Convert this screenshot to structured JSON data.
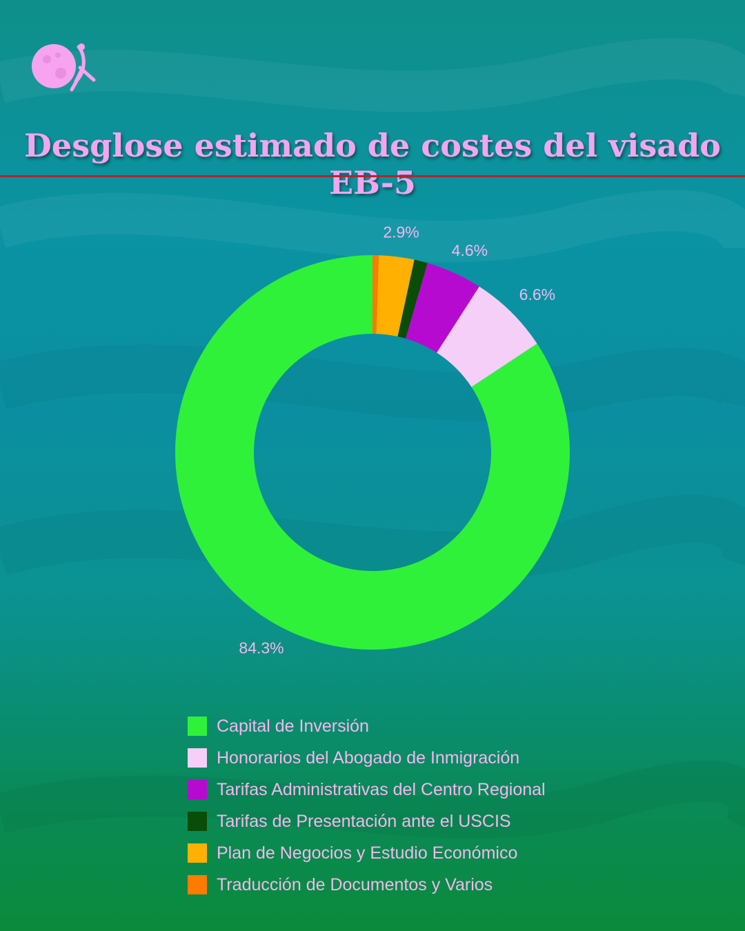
{
  "header": {
    "title": "Desglose estimado de costes del visado EB-5",
    "logo_icon": "moon-figure-logo-icon"
  },
  "chart_data": {
    "type": "pie",
    "title": "Desglose estimado de costes del visado EB-5",
    "donut": true,
    "start_angle_deg": 0,
    "direction": "counterclockwise",
    "legend_position": "bottom",
    "series": [
      {
        "name": "Capital de Inversión",
        "value": 84.3,
        "label": "84.3%",
        "color": "#30f13a"
      },
      {
        "name": "Honorarios del Abogado de Inmigración",
        "value": 6.6,
        "label": "6.6%",
        "color": "#f5cff8"
      },
      {
        "name": "Tarifas Administrativas del Centro Regional",
        "value": 4.6,
        "label": "4.6%",
        "color": "#b70ad0"
      },
      {
        "name": "Tarifas de Presentación ante el USCIS",
        "value": 1.1,
        "label": "",
        "color": "#0a4d08"
      },
      {
        "name": "Plan de Negocios y Estudio Económico",
        "value": 2.9,
        "label": "2.9%",
        "color": "#ffb000"
      },
      {
        "name": "Traducción de Documentos y Varios",
        "value": 0.5,
        "label": "",
        "color": "#ff7a00"
      }
    ]
  },
  "legend": {
    "items": [
      {
        "label": "Capital de Inversión",
        "color": "#30f13a"
      },
      {
        "label": "Honorarios del Abogado de Inmigración",
        "color": "#f5cff8"
      },
      {
        "label": "Tarifas Administrativas del Centro Regional",
        "color": "#b70ad0"
      },
      {
        "label": "Tarifas de Presentación ante el USCIS",
        "color": "#0a4d08"
      },
      {
        "label": "Plan de Negocios y Estudio Económico",
        "color": "#ffb000"
      },
      {
        "label": "Traducción de Documentos y Varios",
        "color": "#ff7a00"
      }
    ]
  },
  "colors": {
    "title": "#f2a6ee",
    "divider": "#b0262f",
    "label_text": "#f3b7f0"
  }
}
